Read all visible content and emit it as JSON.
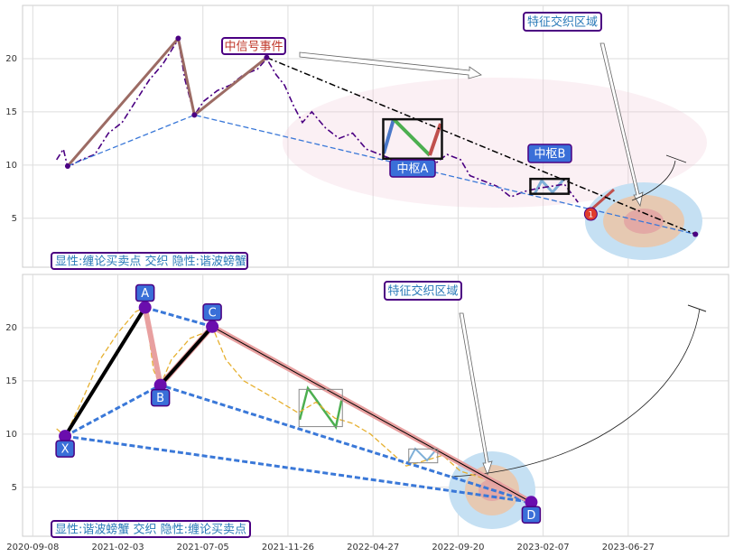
{
  "chart_data": [
    {
      "type": "line",
      "xlim": [
        -12,
        818
      ],
      "ylim": [
        0.4,
        25
      ],
      "xticks": [
        0,
        100,
        200,
        300,
        400,
        500,
        600,
        700
      ],
      "yticks": [
        5,
        10,
        15,
        20
      ],
      "grid": true,
      "series": [
        {
          "color": "#4b0082",
          "style": "dashdot",
          "width": 1.6,
          "x": [
            28,
            36,
            41,
            57,
            73,
            89,
            105,
            121,
            137,
            153,
            171,
            179,
            190,
            201,
            217,
            232,
            248,
            264,
            275,
            286,
            296,
            307,
            317,
            328,
            344,
            360,
            376,
            392,
            408,
            424,
            439,
            455,
            471,
            487,
            503,
            514,
            530,
            546,
            562,
            577,
            593,
            609,
            625,
            641
          ],
          "values": [
            10.5,
            11.5,
            9.8,
            10.5,
            11,
            13,
            14,
            16,
            18,
            19.5,
            21.8,
            18,
            14.7,
            16,
            17,
            17.5,
            18.5,
            19,
            20,
            18.5,
            17.5,
            15.5,
            14,
            15,
            13.5,
            12.5,
            13,
            11.5,
            11,
            10.5,
            9.5,
            10.5,
            10,
            11,
            10.5,
            9,
            8.5,
            8,
            7,
            7.5,
            7.8,
            8,
            8.2,
            6.5
          ]
        },
        {
          "color": "#9c6b64",
          "style": "solid",
          "width": 3,
          "x": [
            41,
            171,
            190,
            275
          ],
          "values": [
            9.9,
            21.9,
            14.7,
            20.1
          ]
        },
        {
          "color": "#3a78d8",
          "style": "dash",
          "width": 1.3,
          "x": [
            41,
            190,
            779
          ],
          "values": [
            9.9,
            14.7,
            3.5
          ]
        },
        {
          "color": "#000000",
          "style": "dashdot",
          "width": 1.5,
          "x": [
            275,
            779
          ],
          "values": [
            20.1,
            3.5
          ]
        }
      ],
      "pivots": {
        "color": "#4b0082",
        "x": [
          41,
          171,
          190,
          275,
          779
        ],
        "values": [
          9.9,
          21.9,
          14.7,
          20.1,
          3.5
        ]
      },
      "boxes": [
        {
          "label": "中枢A",
          "x": [
            412,
            481
          ],
          "y": [
            10.6,
            14.3
          ]
        },
        {
          "label": "中枢B",
          "x": [
            585,
            630
          ],
          "y": [
            7.3,
            8.7
          ]
        }
      ],
      "signal": {
        "label": "1",
        "x": 656,
        "value": 5.4
      },
      "annotations": [
        "中信号事件",
        "特征交织区域"
      ],
      "caption": "显性:缠论买卖点 交织 隐性:谐波螃蟹"
    },
    {
      "type": "line",
      "xlim": [
        -12,
        818
      ],
      "ylim": [
        0.4,
        25
      ],
      "xticks": [
        {
          "value": 0,
          "label": "2020-09-08"
        },
        {
          "value": 100,
          "label": "2021-02-03"
        },
        {
          "value": 200,
          "label": "2021-07-05"
        },
        {
          "value": 300,
          "label": "2021-11-26"
        },
        {
          "value": 400,
          "label": "2022-04-27"
        },
        {
          "value": 500,
          "label": "2022-09-20"
        },
        {
          "value": 600,
          "label": "2023-02-07"
        },
        {
          "value": 700,
          "label": "2023-06-27"
        }
      ],
      "yticks": [
        5,
        10,
        15,
        20
      ],
      "grid": true,
      "series": [
        {
          "color": "#e6b030",
          "style": "dash",
          "width": 1.3,
          "x": [
            28,
            38,
            57,
            79,
            100,
            121,
            132,
            142,
            150,
            163,
            185,
            201,
            211,
            227,
            248,
            270,
            291,
            312,
            333,
            355,
            376,
            397,
            418,
            439,
            461,
            482,
            503,
            524,
            540
          ],
          "values": [
            10.5,
            9.8,
            13,
            17,
            19.5,
            21.5,
            21.9,
            16,
            14.6,
            17,
            19,
            19.5,
            20.1,
            17,
            15,
            14,
            13,
            12,
            13,
            11.5,
            11,
            10,
            8.5,
            7,
            7.5,
            8,
            6.5,
            6,
            5.5
          ]
        },
        {
          "color": "#3a78d8",
          "style": "dash",
          "width": 3,
          "x": [
            38,
            150,
            586
          ],
          "values": [
            9.8,
            14.6,
            3.6
          ]
        },
        {
          "color": "#3a78d8",
          "style": "dash",
          "width": 3,
          "x": [
            38,
            586
          ],
          "values": [
            9.8,
            3.6
          ]
        },
        {
          "color": "#3a78d8",
          "style": "dash",
          "width": 3,
          "x": [
            132,
            211
          ],
          "values": [
            21.9,
            20.1
          ]
        },
        {
          "color": "#e8a0a0",
          "style": "solid",
          "width": 6,
          "x": [
            132,
            150,
            211,
            586
          ],
          "values": [
            21.9,
            14.6,
            20.1,
            3.6
          ]
        },
        {
          "color": "#000000",
          "style": "solid",
          "width": 4,
          "x": [
            38,
            132
          ],
          "values": [
            9.8,
            21.9
          ]
        },
        {
          "color": "#000000",
          "style": "solid",
          "width": 4,
          "x": [
            150,
            211
          ],
          "values": [
            14.6,
            20.1
          ]
        },
        {
          "color": "#000000",
          "style": "solid",
          "width": 1,
          "x": [
            211,
            586
          ],
          "values": [
            20.1,
            3.6
          ]
        }
      ],
      "points": [
        {
          "label": "X",
          "x": 38,
          "value": 9.8
        },
        {
          "label": "A",
          "x": 132,
          "value": 21.9
        },
        {
          "label": "B",
          "x": 150,
          "value": 14.6
        },
        {
          "label": "C",
          "x": 211,
          "value": 20.1
        },
        {
          "label": "D",
          "x": 586,
          "value": 3.6
        }
      ],
      "boxes": [
        {
          "x": [
            313,
            364
          ],
          "y": [
            10.7,
            14.2
          ]
        },
        {
          "x": [
            442,
            476
          ],
          "y": [
            7.3,
            8.6
          ]
        }
      ],
      "annotations": [
        "特征交织区域"
      ],
      "caption": "显性:谐波螃蟹 交织 隐性:缠论买卖点"
    }
  ]
}
